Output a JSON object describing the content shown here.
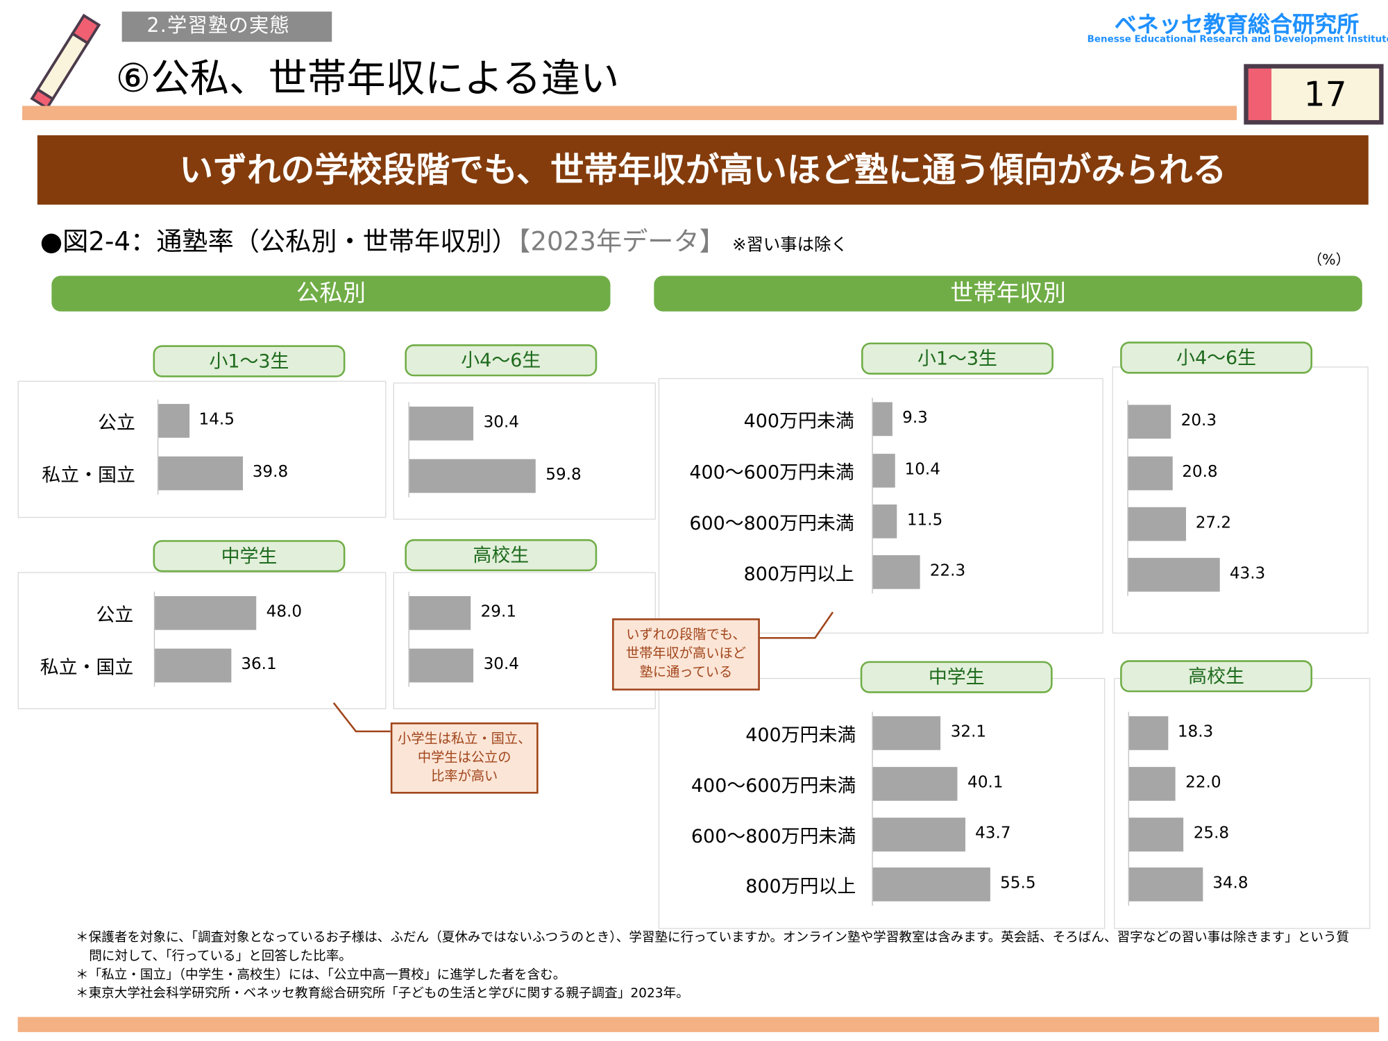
{
  "header": {
    "section_tag": "2.学習塾の実態",
    "title": "⑥公私、世帯年収による違い",
    "logo": "ベネッセ教育総合研究所",
    "logo_sub": "Benesse  Educational Research and Development Institute",
    "page_number": "17"
  },
  "banner": "いずれの学校段階でも、世帯年収が高いほど塾に通う傾向がみられる",
  "figure": {
    "caption": "●図2-4：通塾率（公私別・世帯年収別）",
    "year": "【2023年データ】",
    "note": "※習い事は除く",
    "unit": "（%）"
  },
  "groups": {
    "public_private": "公私別",
    "income": "世帯年収別"
  },
  "chart_data": [
    {
      "type": "bar",
      "group": "公私別",
      "title": "小1〜3生",
      "categories": [
        "公立",
        "私立・国立"
      ],
      "values": [
        14.5,
        39.8
      ]
    },
    {
      "type": "bar",
      "group": "公私別",
      "title": "小4〜6生",
      "categories": [
        "公立",
        "私立・国立"
      ],
      "values": [
        30.4,
        59.8
      ]
    },
    {
      "type": "bar",
      "group": "公私別",
      "title": "中学生",
      "categories": [
        "公立",
        "私立・国立"
      ],
      "values": [
        48.0,
        36.1
      ]
    },
    {
      "type": "bar",
      "group": "公私別",
      "title": "高校生",
      "categories": [
        "公立",
        "私立・国立"
      ],
      "values": [
        29.1,
        30.4
      ]
    },
    {
      "type": "bar",
      "group": "世帯年収別",
      "title": "小1〜3生",
      "categories": [
        "400万円未満",
        "400〜600万円未満",
        "600〜800万円未満",
        "800万円以上"
      ],
      "values": [
        9.3,
        10.4,
        11.5,
        22.3
      ]
    },
    {
      "type": "bar",
      "group": "世帯年収別",
      "title": "小4〜6生",
      "categories": [
        "400万円未満",
        "400〜600万円未満",
        "600〜800万円未満",
        "800万円以上"
      ],
      "values": [
        20.3,
        20.8,
        27.2,
        43.3
      ]
    },
    {
      "type": "bar",
      "group": "世帯年収別",
      "title": "中学生",
      "categories": [
        "400万円未満",
        "400〜600万円未満",
        "600〜800万円未満",
        "800万円以上"
      ],
      "values": [
        32.1,
        40.1,
        43.7,
        55.5
      ]
    },
    {
      "type": "bar",
      "group": "世帯年収別",
      "title": "高校生",
      "categories": [
        "400万円未満",
        "400〜600万円未満",
        "600〜800万円未満",
        "800万円以上"
      ],
      "values": [
        18.3,
        22.0,
        25.8,
        34.8
      ]
    }
  ],
  "callouts": {
    "income": [
      "いずれの段階でも、",
      "世帯年収が高いほど",
      "塾に通っている"
    ],
    "public_private": [
      "小学生は私立・国立、",
      "中学生は公立の",
      "比率が高い"
    ]
  },
  "footnotes": [
    "＊保護者を対象に、「調査対象となっているお子様は、ふだん（夏休みではないふつうのとき）、学習塾に行っていますか。オンライン塾や学習教室は含みます。英会話、そろばん、習字などの習い事は除きます」という質問に対して、「行っている」と回答した比率。",
    "＊「私立・国立」（中学生・高校生）には、「公立中高一貫校」に進学した者を含む。",
    "＊東京大学社会科学研究所・ベネッセ教育総合研究所「子どもの生活と学びに関する親子調査」2023年。"
  ],
  "colors": {
    "accent_green": "#70ad47",
    "banner_brown": "#843c0c",
    "bar_gray": "#a6a6a6",
    "orange": "#f4b183",
    "logo_blue": "#1e90ff"
  }
}
